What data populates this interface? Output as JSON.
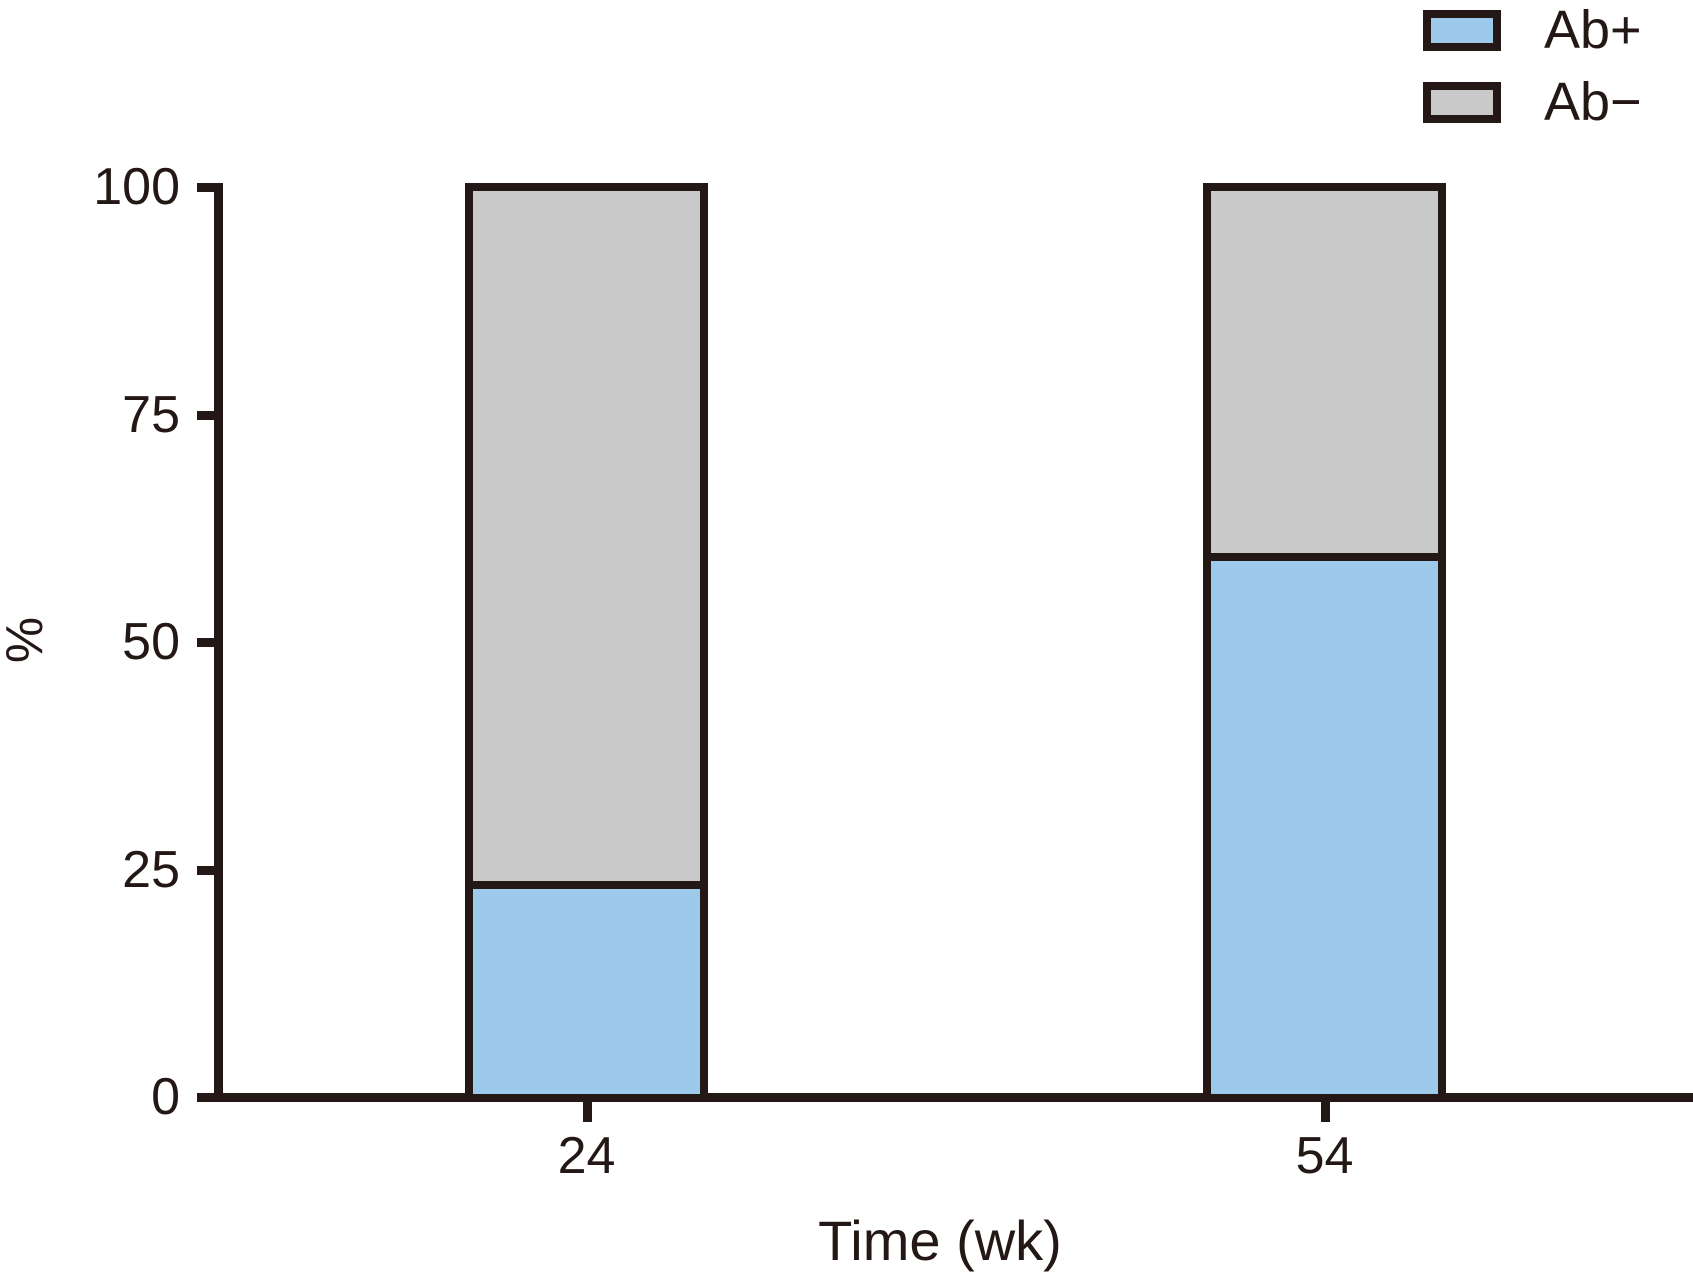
{
  "chart_data": {
    "type": "bar",
    "stacked": true,
    "title": "",
    "xlabel": "Time (wk)",
    "ylabel": "%",
    "ylim": [
      0,
      100
    ],
    "yticks": [
      0,
      25,
      50,
      75,
      100
    ],
    "categories": [
      "24",
      "54"
    ],
    "series": [
      {
        "name": "Ab+",
        "color": "#9DC9EB",
        "values": [
          23,
          59
        ]
      },
      {
        "name": "Ab−",
        "color": "#C9C9C9",
        "values": [
          77,
          41
        ]
      }
    ],
    "legend_position": "top-right",
    "grid": false
  },
  "colors": {
    "axis": "#231815",
    "text": "#231815",
    "background": "#FFFFFF"
  }
}
